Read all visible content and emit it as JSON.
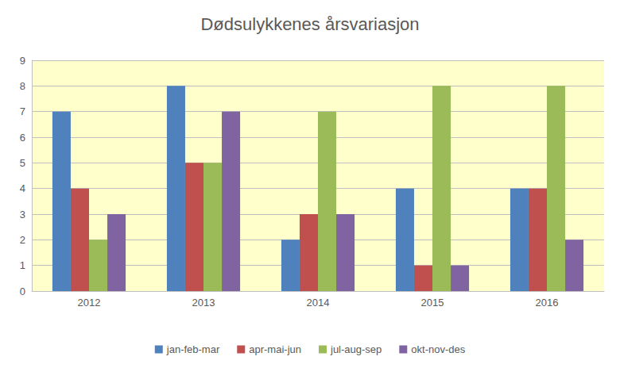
{
  "chart_data": {
    "type": "bar",
    "title": "Dødsulykkenes årsvariasjon",
    "categories": [
      "2012",
      "2013",
      "2014",
      "2015",
      "2016"
    ],
    "series": [
      {
        "name": "jan-feb-mar",
        "color": "#4f81bd",
        "values": [
          7,
          8,
          2,
          4,
          4
        ]
      },
      {
        "name": "apr-mai-jun",
        "color": "#c0504d",
        "values": [
          4,
          5,
          3,
          1,
          4
        ]
      },
      {
        "name": "jul-aug-sep",
        "color": "#9bbb59",
        "values": [
          2,
          5,
          7,
          8,
          8
        ]
      },
      {
        "name": "okt-nov-des",
        "color": "#8064a2",
        "values": [
          3,
          7,
          3,
          1,
          2
        ]
      }
    ],
    "ylim": [
      0,
      9
    ],
    "yticks": [
      0,
      1,
      2,
      3,
      4,
      5,
      6,
      7,
      8,
      9
    ],
    "grid": true,
    "legend": "bottom"
  }
}
